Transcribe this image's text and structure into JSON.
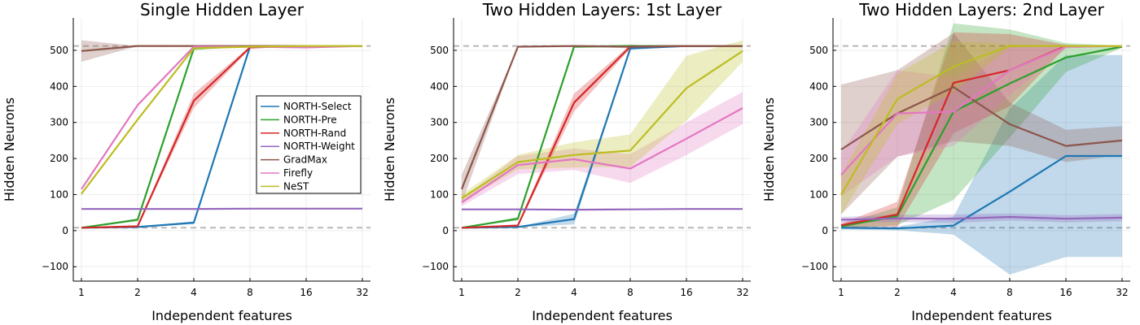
{
  "chart_data": [
    {
      "type": "line",
      "title": "Single Hidden Layer",
      "xlabel": "Independent features",
      "ylabel": "Hidden Neurons",
      "x": [
        1,
        2,
        4,
        8,
        16,
        32
      ],
      "xscale": "log2",
      "xticks": [
        "1",
        "2",
        "4",
        "8",
        "16",
        "32"
      ],
      "ylim": [
        -140,
        590
      ],
      "yticks": [
        -100,
        0,
        100,
        200,
        300,
        400,
        500
      ],
      "grid": true,
      "reference_lines": [
        8,
        512
      ],
      "legend": "right",
      "series": [
        {
          "name": "NORTH-Select",
          "color": "#1f77b4",
          "values": [
            8,
            10,
            22,
            510,
            512,
            512
          ],
          "band": [
            0,
            0,
            4,
            2,
            0,
            0
          ]
        },
        {
          "name": "NORTH-Pre",
          "color": "#2ca02c",
          "values": [
            8,
            30,
            505,
            512,
            512,
            512
          ],
          "band": [
            0,
            4,
            5,
            0,
            0,
            0
          ]
        },
        {
          "name": "NORTH-Rand",
          "color": "#d62728",
          "values": [
            8,
            12,
            360,
            508,
            512,
            512
          ],
          "band": [
            0,
            2,
            20,
            3,
            0,
            0
          ]
        },
        {
          "name": "NORTH-Weight",
          "color": "#9467bd",
          "values": [
            60,
            60,
            60,
            61,
            61,
            61
          ],
          "band": [
            1,
            1,
            1,
            1,
            1,
            1
          ]
        },
        {
          "name": "GradMax",
          "color": "#8c564b",
          "values": [
            498,
            512,
            512,
            512,
            512,
            512
          ],
          "band": [
            30,
            0,
            0,
            0,
            0,
            0
          ]
        },
        {
          "name": "Firefly",
          "color": "#e377c2",
          "values": [
            115,
            348,
            510,
            510,
            508,
            512
          ],
          "band": [
            3,
            3,
            2,
            2,
            3,
            0
          ]
        },
        {
          "name": "NeST",
          "color": "#bcbd22",
          "values": [
            102,
            308,
            506,
            510,
            512,
            512
          ],
          "band": [
            3,
            3,
            3,
            2,
            0,
            0
          ]
        }
      ]
    },
    {
      "type": "line",
      "title": "Two Hidden Layers: 1st Layer",
      "xlabel": "Independent features",
      "ylabel": "Hidden Neurons",
      "x": [
        1,
        2,
        4,
        8,
        16,
        32
      ],
      "xscale": "log2",
      "xticks": [
        "1",
        "2",
        "4",
        "8",
        "16",
        "32"
      ],
      "ylim": [
        -140,
        590
      ],
      "yticks": [
        -100,
        0,
        100,
        200,
        300,
        400,
        500
      ],
      "grid": true,
      "reference_lines": [
        8,
        512
      ],
      "series": [
        {
          "name": "NORTH-Select",
          "color": "#1f77b4",
          "values": [
            8,
            10,
            32,
            505,
            512,
            512
          ],
          "band": [
            0,
            0,
            15,
            3,
            0,
            0
          ]
        },
        {
          "name": "NORTH-Pre",
          "color": "#2ca02c",
          "values": [
            8,
            33,
            510,
            512,
            512,
            512
          ],
          "band": [
            0,
            5,
            3,
            3,
            0,
            0
          ]
        },
        {
          "name": "NORTH-Rand",
          "color": "#d62728",
          "values": [
            8,
            14,
            355,
            510,
            512,
            512
          ],
          "band": [
            0,
            3,
            25,
            5,
            0,
            0
          ]
        },
        {
          "name": "NORTH-Weight",
          "color": "#9467bd",
          "values": [
            59,
            59,
            58,
            59,
            60,
            60
          ],
          "band": [
            1,
            1,
            1,
            1,
            1,
            1
          ]
        },
        {
          "name": "GradMax",
          "color": "#8c564b",
          "values": [
            115,
            510,
            512,
            510,
            512,
            512
          ],
          "band": [
            40,
            0,
            0,
            5,
            0,
            0
          ]
        },
        {
          "name": "Firefly",
          "color": "#e377c2",
          "values": [
            78,
            182,
            198,
            172,
            255,
            340
          ],
          "band": [
            10,
            25,
            30,
            40,
            45,
            45
          ]
        },
        {
          "name": "NeST",
          "color": "#bcbd22",
          "values": [
            90,
            190,
            210,
            222,
            395,
            498
          ],
          "band": [
            10,
            20,
            35,
            45,
            90,
            30
          ]
        }
      ]
    },
    {
      "type": "line",
      "title": "Two Hidden Layers: 2nd Layer",
      "xlabel": "Independent features",
      "ylabel": "Hidden Neurons",
      "x": [
        1,
        2,
        4,
        8,
        16,
        32
      ],
      "xscale": "log2",
      "xticks": [
        "1",
        "2",
        "4",
        "8",
        "16",
        "32"
      ],
      "ylim": [
        -140,
        590
      ],
      "yticks": [
        -100,
        0,
        100,
        200,
        300,
        400,
        500
      ],
      "grid": true,
      "reference_lines": [
        8,
        512
      ],
      "series": [
        {
          "name": "NORTH-Select",
          "color": "#1f77b4",
          "values": [
            8,
            6,
            14,
            108,
            207,
            207
          ],
          "band": [
            5,
            5,
            25,
            230,
            280,
            280
          ]
        },
        {
          "name": "NORTH-Pre",
          "color": "#2ca02c",
          "values": [
            12,
            40,
            330,
            408,
            480,
            510
          ],
          "band": [
            5,
            25,
            245,
            150,
            40,
            3
          ]
        },
        {
          "name": "NORTH-Rand",
          "color": "#d62728",
          "values": [
            15,
            45,
            410,
            445,
            512,
            512
          ],
          "band": [
            5,
            35,
            140,
            100,
            3,
            0
          ]
        },
        {
          "name": "NORTH-Weight",
          "color": "#9467bd",
          "values": [
            30,
            34,
            33,
            38,
            33,
            36
          ],
          "band": [
            8,
            10,
            12,
            10,
            10,
            10
          ]
        },
        {
          "name": "GradMax",
          "color": "#8c564b",
          "values": [
            225,
            325,
            398,
            295,
            235,
            250
          ],
          "band": [
            180,
            120,
            150,
            60,
            45,
            40
          ]
        },
        {
          "name": "Firefly",
          "color": "#e377c2",
          "values": [
            155,
            325,
            330,
            445,
            510,
            512
          ],
          "band": [
            60,
            120,
            95,
            70,
            5,
            0
          ]
        },
        {
          "name": "NeST",
          "color": "#bcbd22",
          "values": [
            100,
            365,
            455,
            512,
            512,
            512
          ],
          "band": [
            55,
            70,
            70,
            5,
            0,
            0
          ]
        }
      ]
    }
  ]
}
